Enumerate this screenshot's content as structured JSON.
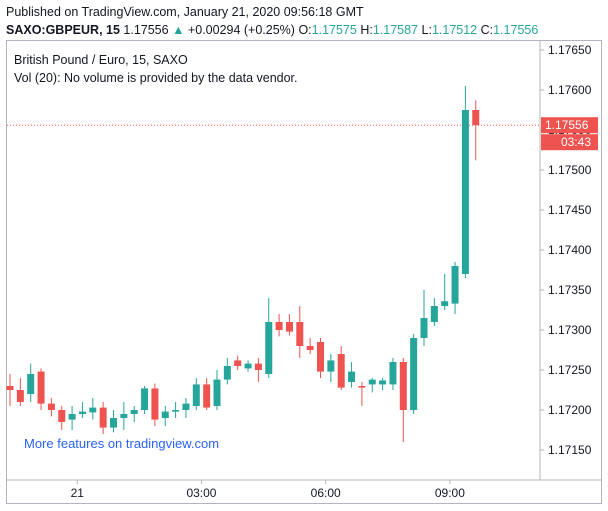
{
  "header": {
    "published": "Published on TradingView.com, January 21, 2020 09:56:18 GMT",
    "symbol": "SAXO:GBPEUR, 15",
    "last": "1.17556",
    "change_arrow": "▲",
    "change": "+0.00294 (+0.25%)",
    "o_label": "O:",
    "o_value": "1.17575",
    "h_label": "H:",
    "h_value": "1.17587",
    "l_label": "L:",
    "l_value": "1.17512",
    "c_label": "C:",
    "c_value": "1.17556"
  },
  "legend": {
    "title": "British Pound / Euro, 15, SAXO",
    "volume": "Vol (20): No volume is provided by the data vendor."
  },
  "promo": "More features on tradingview.com",
  "colors": {
    "up": "#26a69a",
    "down": "#ef5350",
    "text": "#131722",
    "price_label": "#ef5350",
    "promo": "#2962ff"
  },
  "chart_data": {
    "type": "candlestick",
    "y_ticks": [
      "1.17650",
      "1.17600",
      "1.17550",
      "1.17500",
      "1.17450",
      "1.17400",
      "1.17350",
      "1.17300",
      "1.17250",
      "1.17200",
      "1.17150"
    ],
    "ylim": [
      1.1711,
      1.1768
    ],
    "x_ticks": [
      {
        "label": "21",
        "index": 6.5
      },
      {
        "label": "03:00",
        "index": 18.5
      },
      {
        "label": "06:00",
        "index": 30.5
      },
      {
        "label": "09:00",
        "index": 42.5
      }
    ],
    "current_price": "1.17556",
    "countdown": "03:43",
    "candles": [
      {
        "o": 1.1723,
        "h": 1.17245,
        "l": 1.17205,
        "c": 1.17225
      },
      {
        "o": 1.17225,
        "h": 1.1724,
        "l": 1.17205,
        "c": 1.1721
      },
      {
        "o": 1.1722,
        "h": 1.17258,
        "l": 1.1721,
        "c": 1.17245
      },
      {
        "o": 1.17248,
        "h": 1.17252,
        "l": 1.172,
        "c": 1.17208
      },
      {
        "o": 1.17208,
        "h": 1.17215,
        "l": 1.17192,
        "c": 1.172
      },
      {
        "o": 1.172,
        "h": 1.17205,
        "l": 1.17175,
        "c": 1.17185
      },
      {
        "o": 1.17188,
        "h": 1.17205,
        "l": 1.17175,
        "c": 1.17195
      },
      {
        "o": 1.17195,
        "h": 1.1721,
        "l": 1.1719,
        "c": 1.17198
      },
      {
        "o": 1.17197,
        "h": 1.17215,
        "l": 1.17188,
        "c": 1.17203
      },
      {
        "o": 1.17203,
        "h": 1.1721,
        "l": 1.1717,
        "c": 1.17178
      },
      {
        "o": 1.17178,
        "h": 1.172,
        "l": 1.17172,
        "c": 1.1719
      },
      {
        "o": 1.1719,
        "h": 1.1721,
        "l": 1.17175,
        "c": 1.17195
      },
      {
        "o": 1.17195,
        "h": 1.17205,
        "l": 1.17185,
        "c": 1.172
      },
      {
        "o": 1.172,
        "h": 1.1723,
        "l": 1.17195,
        "c": 1.17227
      },
      {
        "o": 1.17227,
        "h": 1.17233,
        "l": 1.1718,
        "c": 1.17188
      },
      {
        "o": 1.1719,
        "h": 1.17205,
        "l": 1.1718,
        "c": 1.17198
      },
      {
        "o": 1.17198,
        "h": 1.1721,
        "l": 1.1719,
        "c": 1.172
      },
      {
        "o": 1.172,
        "h": 1.17215,
        "l": 1.1719,
        "c": 1.17208
      },
      {
        "o": 1.17205,
        "h": 1.1724,
        "l": 1.172,
        "c": 1.17232
      },
      {
        "o": 1.17232,
        "h": 1.1724,
        "l": 1.172,
        "c": 1.17203
      },
      {
        "o": 1.17205,
        "h": 1.1725,
        "l": 1.172,
        "c": 1.17238
      },
      {
        "o": 1.17238,
        "h": 1.17265,
        "l": 1.17232,
        "c": 1.17255
      },
      {
        "o": 1.17262,
        "h": 1.17268,
        "l": 1.1725,
        "c": 1.17255
      },
      {
        "o": 1.17252,
        "h": 1.17262,
        "l": 1.17248,
        "c": 1.17258
      },
      {
        "o": 1.17258,
        "h": 1.17265,
        "l": 1.17235,
        "c": 1.1725
      },
      {
        "o": 1.17245,
        "h": 1.1734,
        "l": 1.1724,
        "c": 1.1731
      },
      {
        "o": 1.1731,
        "h": 1.1732,
        "l": 1.17292,
        "c": 1.173
      },
      {
        "o": 1.1731,
        "h": 1.1732,
        "l": 1.17293,
        "c": 1.17298
      },
      {
        "o": 1.1731,
        "h": 1.1733,
        "l": 1.17265,
        "c": 1.1728
      },
      {
        "o": 1.1728,
        "h": 1.1729,
        "l": 1.1727,
        "c": 1.17275
      },
      {
        "o": 1.17285,
        "h": 1.1729,
        "l": 1.1724,
        "c": 1.17248
      },
      {
        "o": 1.17248,
        "h": 1.1727,
        "l": 1.17235,
        "c": 1.17262
      },
      {
        "o": 1.1727,
        "h": 1.1728,
        "l": 1.17225,
        "c": 1.17228
      },
      {
        "o": 1.17235,
        "h": 1.1726,
        "l": 1.17228,
        "c": 1.17248
      },
      {
        "o": 1.1723,
        "h": 1.17235,
        "l": 1.17205,
        "c": 1.17228
      },
      {
        "o": 1.17232,
        "h": 1.1724,
        "l": 1.17222,
        "c": 1.17238
      },
      {
        "o": 1.17232,
        "h": 1.1724,
        "l": 1.17225,
        "c": 1.17237
      },
      {
        "o": 1.17232,
        "h": 1.17265,
        "l": 1.17225,
        "c": 1.1726
      },
      {
        "o": 1.1726,
        "h": 1.17265,
        "l": 1.1716,
        "c": 1.172
      },
      {
        "o": 1.172,
        "h": 1.17295,
        "l": 1.17195,
        "c": 1.1729
      },
      {
        "o": 1.1729,
        "h": 1.1735,
        "l": 1.1728,
        "c": 1.17315
      },
      {
        "o": 1.1731,
        "h": 1.1734,
        "l": 1.17305,
        "c": 1.1733
      },
      {
        "o": 1.1733,
        "h": 1.1737,
        "l": 1.17325,
        "c": 1.17336
      },
      {
        "o": 1.17333,
        "h": 1.17385,
        "l": 1.1732,
        "c": 1.1738
      },
      {
        "o": 1.1737,
        "h": 1.17605,
        "l": 1.17365,
        "c": 1.17575
      },
      {
        "o": 1.17575,
        "h": 1.17587,
        "l": 1.17512,
        "c": 1.17556
      }
    ]
  }
}
